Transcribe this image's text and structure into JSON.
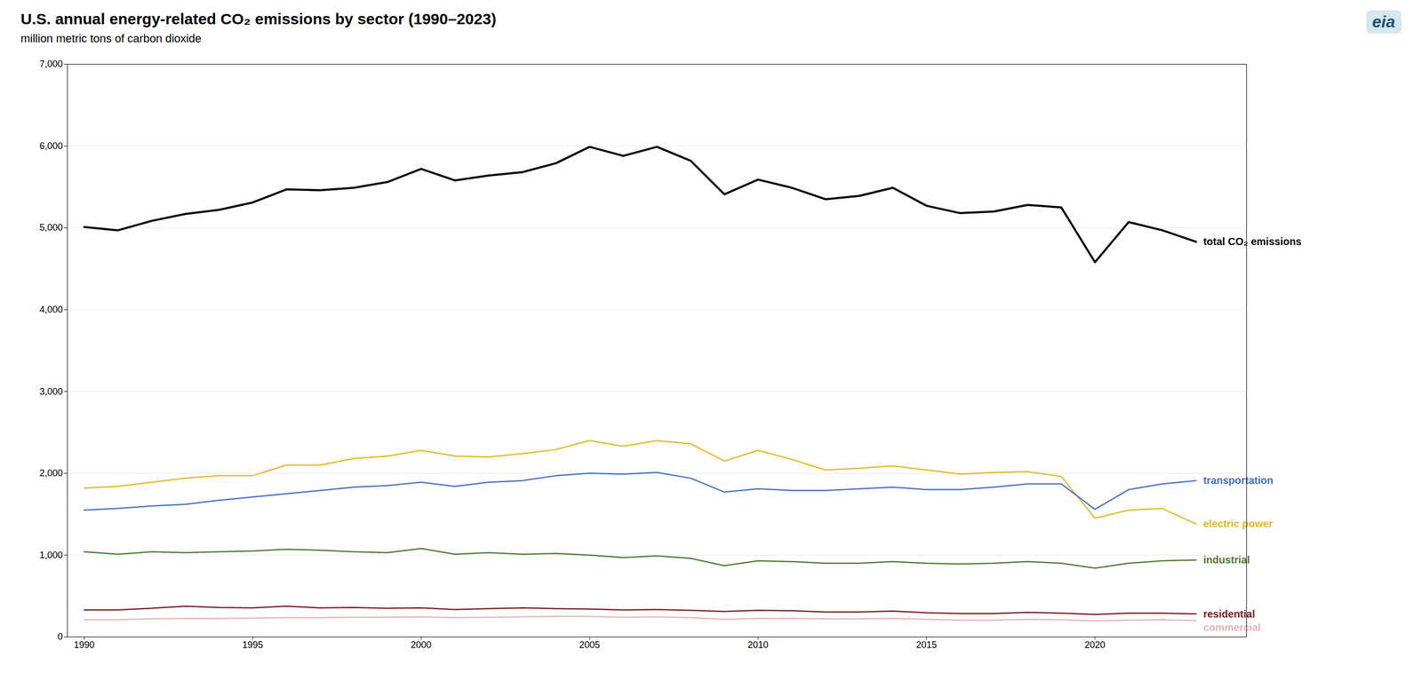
{
  "chart_data": {
    "type": "line",
    "title": "U.S. annual energy-related CO₂ emissions by sector (1990–2023)",
    "subtitle": "million metric tons of carbon dioxide",
    "annotations": [
      "eia"
    ],
    "x": [
      1990,
      1991,
      1992,
      1993,
      1994,
      1995,
      1996,
      1997,
      1998,
      1999,
      2000,
      2001,
      2002,
      2003,
      2004,
      2005,
      2006,
      2007,
      2008,
      2009,
      2010,
      2011,
      2012,
      2013,
      2014,
      2015,
      2016,
      2017,
      2018,
      2019,
      2020,
      2021,
      2022,
      2023
    ],
    "series": [
      {
        "name": "electric power",
        "color": "#e6b820",
        "values": [
          1820,
          1840,
          1890,
          1940,
          1970,
          1970,
          2100,
          2100,
          2180,
          2210,
          2280,
          2210,
          2200,
          2240,
          2290,
          2400,
          2330,
          2400,
          2360,
          2150,
          2280,
          2170,
          2040,
          2060,
          2090,
          2040,
          1990,
          2010,
          2020,
          1960,
          1450,
          1550,
          1570,
          1380
        ]
      },
      {
        "name": "transportation",
        "color": "#4472c4",
        "values": [
          1550,
          1570,
          1600,
          1620,
          1670,
          1710,
          1750,
          1790,
          1830,
          1850,
          1890,
          1840,
          1890,
          1910,
          1970,
          2000,
          1990,
          2010,
          1940,
          1770,
          1810,
          1790,
          1790,
          1810,
          1830,
          1800,
          1800,
          1830,
          1870,
          1870,
          1560,
          1800,
          1870,
          1910
        ]
      },
      {
        "name": "industrial",
        "color": "#4e7c2f",
        "values": [
          1040,
          1010,
          1040,
          1030,
          1040,
          1050,
          1070,
          1060,
          1040,
          1030,
          1080,
          1010,
          1030,
          1010,
          1020,
          1000,
          970,
          990,
          960,
          870,
          930,
          920,
          900,
          900,
          920,
          900,
          890,
          900,
          920,
          900,
          840,
          900,
          930,
          940
        ]
      },
      {
        "name": "residential",
        "color": "#7b2020",
        "values": [
          330,
          330,
          350,
          375,
          360,
          355,
          375,
          355,
          360,
          350,
          355,
          335,
          345,
          355,
          345,
          340,
          330,
          335,
          325,
          310,
          325,
          320,
          305,
          305,
          315,
          295,
          285,
          285,
          300,
          290,
          275,
          290,
          290,
          280
        ]
      },
      {
        "name": "commercial",
        "color": "#e8b4b8",
        "values": [
          210,
          210,
          220,
          225,
          225,
          230,
          235,
          235,
          240,
          240,
          245,
          235,
          240,
          245,
          250,
          250,
          240,
          245,
          235,
          215,
          225,
          225,
          220,
          220,
          225,
          215,
          205,
          205,
          215,
          210,
          195,
          205,
          210,
          200
        ]
      },
      {
        "name": "total CO₂ emissions",
        "color": "#000000",
        "values": [
          5010,
          4970,
          5085,
          5170,
          5220,
          5310,
          5470,
          5460,
          5490,
          5560,
          5720,
          5580,
          5640,
          5680,
          5790,
          5990,
          5880,
          5990,
          5820,
          5410,
          5590,
          5490,
          5350,
          5390,
          5490,
          5270,
          5180,
          5200,
          5280,
          5250,
          4580,
          5070,
          4970,
          4830
        ]
      }
    ],
    "xlim": [
      1989.5,
      2024.5
    ],
    "xticks": [
      1990,
      1995,
      2000,
      2005,
      2010,
      2015,
      2020
    ],
    "ylim": [
      0,
      7000
    ],
    "yticks": [
      0,
      {
        "value": 1000,
        "label": "1,000"
      },
      {
        "value": 2000,
        "label": "2,000"
      },
      {
        "value": 3000,
        "label": "3,000"
      },
      {
        "value": 4000,
        "label": "4,000"
      },
      {
        "value": 5000,
        "label": "5,000"
      },
      {
        "value": 6000,
        "label": "6,000"
      },
      {
        "value": 7000,
        "label": "7,000"
      }
    ],
    "grid": true
  }
}
